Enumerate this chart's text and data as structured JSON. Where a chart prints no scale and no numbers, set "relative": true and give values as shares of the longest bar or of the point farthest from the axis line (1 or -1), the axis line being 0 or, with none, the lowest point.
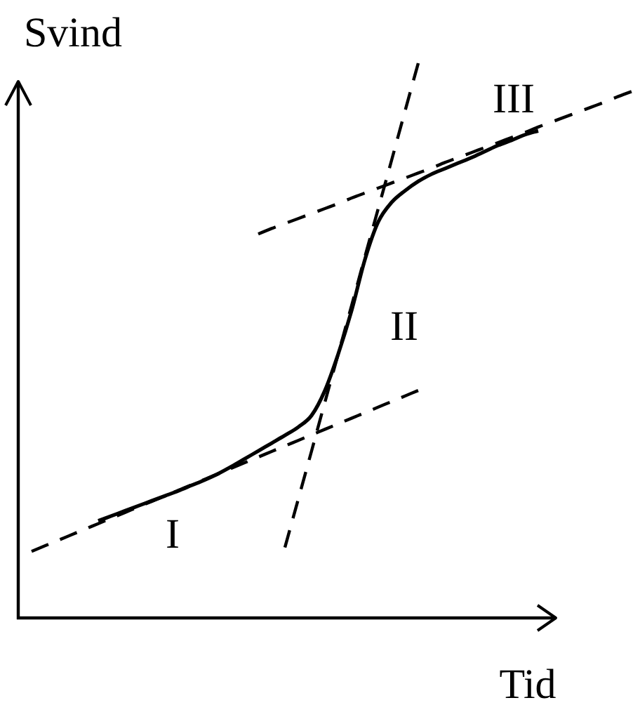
{
  "chart_data": {
    "type": "line",
    "relative": true,
    "xlabel": "Tid",
    "ylabel": "Svind",
    "categories": [
      null,
      null,
      null,
      null,
      null,
      null,
      null,
      null,
      null,
      null,
      null,
      null,
      null,
      null,
      null,
      null,
      null,
      null,
      null,
      null,
      null,
      null,
      null,
      null,
      null,
      null,
      null,
      null,
      null,
      null,
      null,
      null,
      null,
      null,
      null,
      null,
      null,
      null,
      null,
      null,
      null,
      null,
      null,
      null,
      null,
      null,
      null
    ],
    "annotations": [
      "I",
      "II",
      "III"
    ],
    "series": [
      {
        "color": "#000000",
        "line_style": "solid",
        "values": [
          null,
          null,
          null,
          null,
          null,
          null,
          0.175,
          0.184,
          0.193,
          0.202,
          0.211,
          0.22,
          0.229,
          0.239,
          0.249,
          0.26,
          0.273,
          0.287,
          0.301,
          0.315,
          0.329,
          0.344,
          0.365,
          0.41,
          0.476,
          0.554,
          0.646,
          0.714,
          0.749,
          0.77,
          0.787,
          0.8,
          0.81,
          0.82,
          0.83,
          0.841,
          0.852,
          0.861,
          0.871,
          0.878,
          null,
          null,
          null,
          null,
          null,
          null,
          null
        ]
      },
      {
        "color": "#000000",
        "line_style": "dashed",
        "values": [
          null,
          0.12,
          0.13,
          0.14,
          0.15,
          0.16,
          0.17,
          0.18,
          0.19,
          0.2,
          0.21,
          0.22,
          0.23,
          0.24,
          0.25,
          0.26,
          0.27,
          0.28,
          0.29,
          0.3,
          0.31,
          0.32,
          0.33,
          0.34,
          0.35,
          0.36,
          0.37,
          0.38,
          0.39,
          0.4,
          0.41,
          null,
          null,
          null,
          null,
          null,
          null,
          null,
          null,
          null,
          null,
          null,
          null,
          null,
          null,
          null,
          null
        ]
      },
      {
        "color": "#000000",
        "line_style": "dashed",
        "values": [
          null,
          null,
          null,
          null,
          null,
          null,
          null,
          null,
          null,
          null,
          null,
          null,
          null,
          null,
          null,
          null,
          null,
          null,
          null,
          null,
          0.127,
          0.214,
          0.301,
          0.389,
          0.476,
          0.563,
          0.651,
          0.738,
          0.825,
          0.913,
          1,
          null,
          null,
          null,
          null,
          null,
          null,
          null,
          null,
          null,
          null,
          null,
          null,
          null,
          null,
          null,
          null
        ]
      },
      {
        "color": "#000000",
        "line_style": "dashed",
        "values": [
          null,
          null,
          null,
          null,
          null,
          null,
          null,
          null,
          null,
          null,
          null,
          null,
          null,
          null,
          null,
          null,
          null,
          null,
          0.692,
          0.702,
          0.711,
          0.72,
          0.729,
          0.738,
          0.747,
          0.757,
          0.766,
          0.775,
          0.784,
          0.793,
          0.802,
          0.811,
          0.821,
          0.83,
          0.839,
          0.848,
          0.857,
          0.866,
          0.875,
          0.885,
          0.894,
          0.903,
          0.912,
          0.921,
          0.93,
          0.94,
          0.949
        ]
      }
    ]
  }
}
